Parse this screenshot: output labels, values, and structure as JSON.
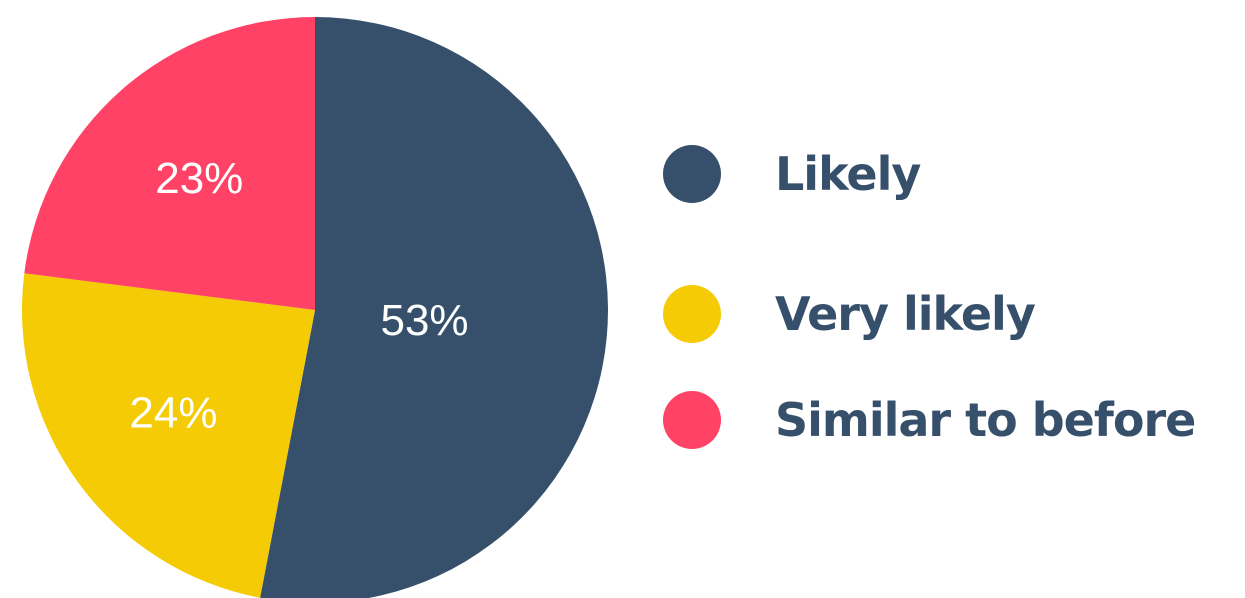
{
  "chart_data": {
    "type": "pie",
    "categories": [
      "Likely",
      "Very likely",
      "Similar to before"
    ],
    "values": [
      53,
      24,
      23
    ],
    "unit": "%",
    "labels": [
      "53%",
      "24%",
      "23%"
    ],
    "colors": [
      "#36506b",
      "#f5cb05",
      "#ff4266"
    ],
    "start_angle_deg": 0,
    "direction": "clockwise",
    "legend_position": "right",
    "title": ""
  }
}
